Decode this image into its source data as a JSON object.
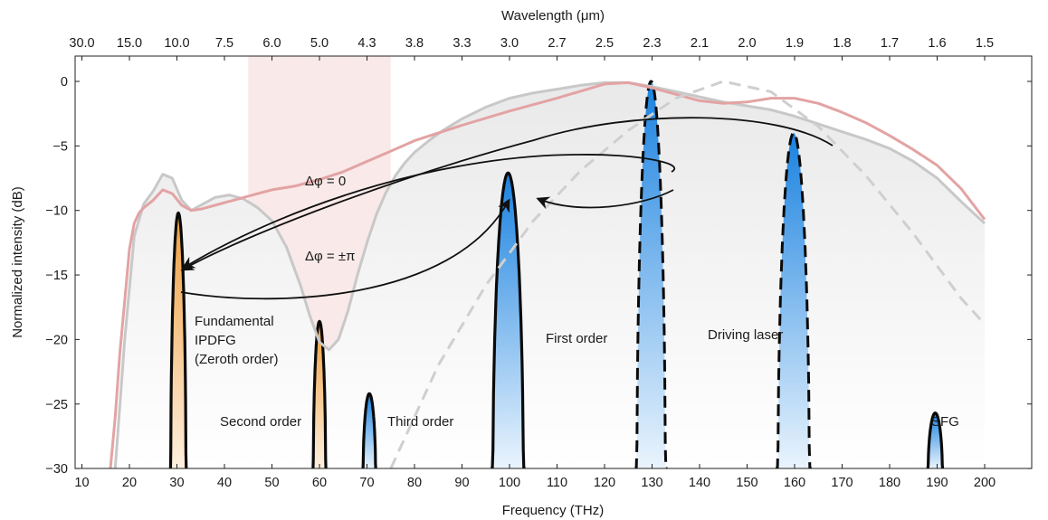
{
  "chart_data": {
    "type": "line",
    "xlabel": "Frequency (THz)",
    "ylabel": "Normalized intensity (dB)",
    "x2label": "Wavelength (μm)",
    "xlim": [
      10,
      200
    ],
    "ylim": [
      -30,
      2
    ],
    "xticks": [
      10,
      20,
      30,
      40,
      50,
      60,
      70,
      80,
      90,
      100,
      110,
      120,
      130,
      140,
      150,
      160,
      170,
      180,
      190,
      200
    ],
    "yticks": [
      0,
      -5,
      -10,
      -15,
      -20,
      -25,
      -30
    ],
    "ytick_labels": [
      "0",
      "−5",
      "−10",
      "−15",
      "−20",
      "−25",
      "−30"
    ],
    "top_ticks": [
      {
        "f": 10,
        "label": "30.0"
      },
      {
        "f": 20,
        "label": "15.0"
      },
      {
        "f": 30,
        "label": "10.0"
      },
      {
        "f": 40,
        "label": "7.5"
      },
      {
        "f": 50,
        "label": "6.0"
      },
      {
        "f": 60,
        "label": "5.0"
      },
      {
        "f": 70,
        "label": "4.3"
      },
      {
        "f": 80,
        "label": "3.8"
      },
      {
        "f": 90,
        "label": "3.3"
      },
      {
        "f": 100,
        "label": "3.0"
      },
      {
        "f": 110,
        "label": "2.7"
      },
      {
        "f": 120,
        "label": "2.5"
      },
      {
        "f": 130,
        "label": "2.3"
      },
      {
        "f": 140,
        "label": "2.1"
      },
      {
        "f": 150,
        "label": "2.0"
      },
      {
        "f": 160,
        "label": "1.9"
      },
      {
        "f": 170,
        "label": "1.8"
      },
      {
        "f": 180,
        "label": "1.7"
      },
      {
        "f": 190,
        "label": "1.6"
      },
      {
        "f": 200,
        "label": "1.5"
      }
    ],
    "shaded_region": {
      "x": [
        45,
        75
      ],
      "color": "#f7e4e4"
    },
    "broad_spectra": [
      {
        "style": "gray-solid",
        "color": "#c8c8c8",
        "x": [
          17,
          19,
          21,
          23,
          25,
          27,
          29,
          31,
          33,
          35,
          38,
          41,
          44,
          47,
          50,
          53,
          56,
          58,
          60,
          62,
          64,
          66,
          68,
          70,
          72,
          74,
          76,
          78,
          80,
          83,
          86,
          90,
          95,
          100,
          105,
          110,
          115,
          120,
          125,
          130,
          135,
          140,
          145,
          150,
          155,
          160,
          165,
          170,
          175,
          180,
          185,
          190,
          195,
          200
        ],
        "y": [
          -30,
          -20,
          -12,
          -9.5,
          -8.5,
          -7.2,
          -7.5,
          -9.2,
          -10,
          -9.6,
          -9,
          -8.8,
          -9.1,
          -9.8,
          -10.8,
          -12.8,
          -15.8,
          -18.2,
          -20.2,
          -20.8,
          -20,
          -17.8,
          -15,
          -12.5,
          -10.3,
          -8.6,
          -7.3,
          -6.3,
          -5.5,
          -4.6,
          -3.8,
          -2.9,
          -2,
          -1.3,
          -0.9,
          -0.6,
          -0.3,
          -0.1,
          -0.1,
          -0.4,
          -0.8,
          -1.2,
          -1.6,
          -1.9,
          -2.2,
          -2.7,
          -3.3,
          -3.9,
          -4.5,
          -5.2,
          -6.2,
          -7.5,
          -9.3,
          -11
        ]
      },
      {
        "style": "pink-solid",
        "color": "#e3a3a3",
        "x": [
          16,
          17,
          18,
          19,
          20,
          21,
          22,
          23,
          25,
          27,
          29,
          31,
          33,
          35,
          38,
          41,
          44,
          47,
          50,
          55,
          60,
          65,
          70,
          75,
          80,
          90,
          100,
          110,
          120,
          125,
          130,
          135,
          140,
          145,
          150,
          155,
          160,
          165,
          170,
          175,
          180,
          185,
          190,
          195,
          200
        ],
        "y": [
          -30,
          -26,
          -21,
          -17,
          -13,
          -11,
          -10.2,
          -9.8,
          -9.2,
          -8.4,
          -8.7,
          -9.6,
          -10,
          -9.9,
          -9.6,
          -9.3,
          -9,
          -8.7,
          -8.4,
          -8.1,
          -7.6,
          -7,
          -6.2,
          -5.4,
          -4.6,
          -3.4,
          -2.3,
          -1.3,
          -0.2,
          -0.1,
          -0.5,
          -1,
          -1.5,
          -1.7,
          -1.6,
          -1.3,
          -1.3,
          -1.7,
          -2.4,
          -3.2,
          -4.2,
          -5.3,
          -6.5,
          -8.3,
          -10.7
        ]
      },
      {
        "style": "gray-dashed",
        "color": "#cfcfcf",
        "x": [
          75,
          85,
          95,
          105,
          115,
          125,
          135,
          145,
          155,
          165,
          175,
          185,
          195,
          200
        ],
        "y": [
          -30,
          -22,
          -15.8,
          -10.8,
          -6.9,
          -3.8,
          -1.3,
          0,
          -0.8,
          -3.5,
          -7.3,
          -11.8,
          -16.8,
          -18.8
        ]
      }
    ],
    "peaks": [
      {
        "label": "Fundamental IPDFG (Zeroth order)",
        "center": 30.3,
        "peak": -10.2,
        "half_width": 1.6,
        "fill": "orange"
      },
      {
        "label": "Second order",
        "center": 60,
        "peak": -18.6,
        "half_width": 1.3,
        "fill": "orange"
      },
      {
        "label": "Third order",
        "center": 70.5,
        "peak": -24.2,
        "half_width": 1.3,
        "fill": "blue"
      },
      {
        "label": "First order",
        "center": 99.7,
        "peak": -7.1,
        "half_width": 3.2,
        "fill": "blue"
      },
      {
        "label": "Driving laser",
        "center": 129.8,
        "peak": 0,
        "half_width": 3,
        "fill": "blue",
        "dashed": true
      },
      {
        "label": "Driving laser",
        "center": 159.8,
        "peak": -4,
        "half_width": 3.3,
        "fill": "blue",
        "dashed": true
      },
      {
        "label": "SFG",
        "center": 189.6,
        "peak": -25.7,
        "half_width": 1.5,
        "fill": "blue"
      }
    ],
    "annotations": {
      "fundamental_line1": "Fundamental",
      "fundamental_line2": "IPDFG",
      "fundamental_line3": "(Zeroth order)",
      "second_order": "Second order",
      "third_order": "Third order",
      "first_order": "First order",
      "driving_laser": "Driving laser",
      "sfg": "SFG",
      "phase_zero": "Δφ = 0",
      "phase_pi": "Δφ = ±π"
    }
  }
}
